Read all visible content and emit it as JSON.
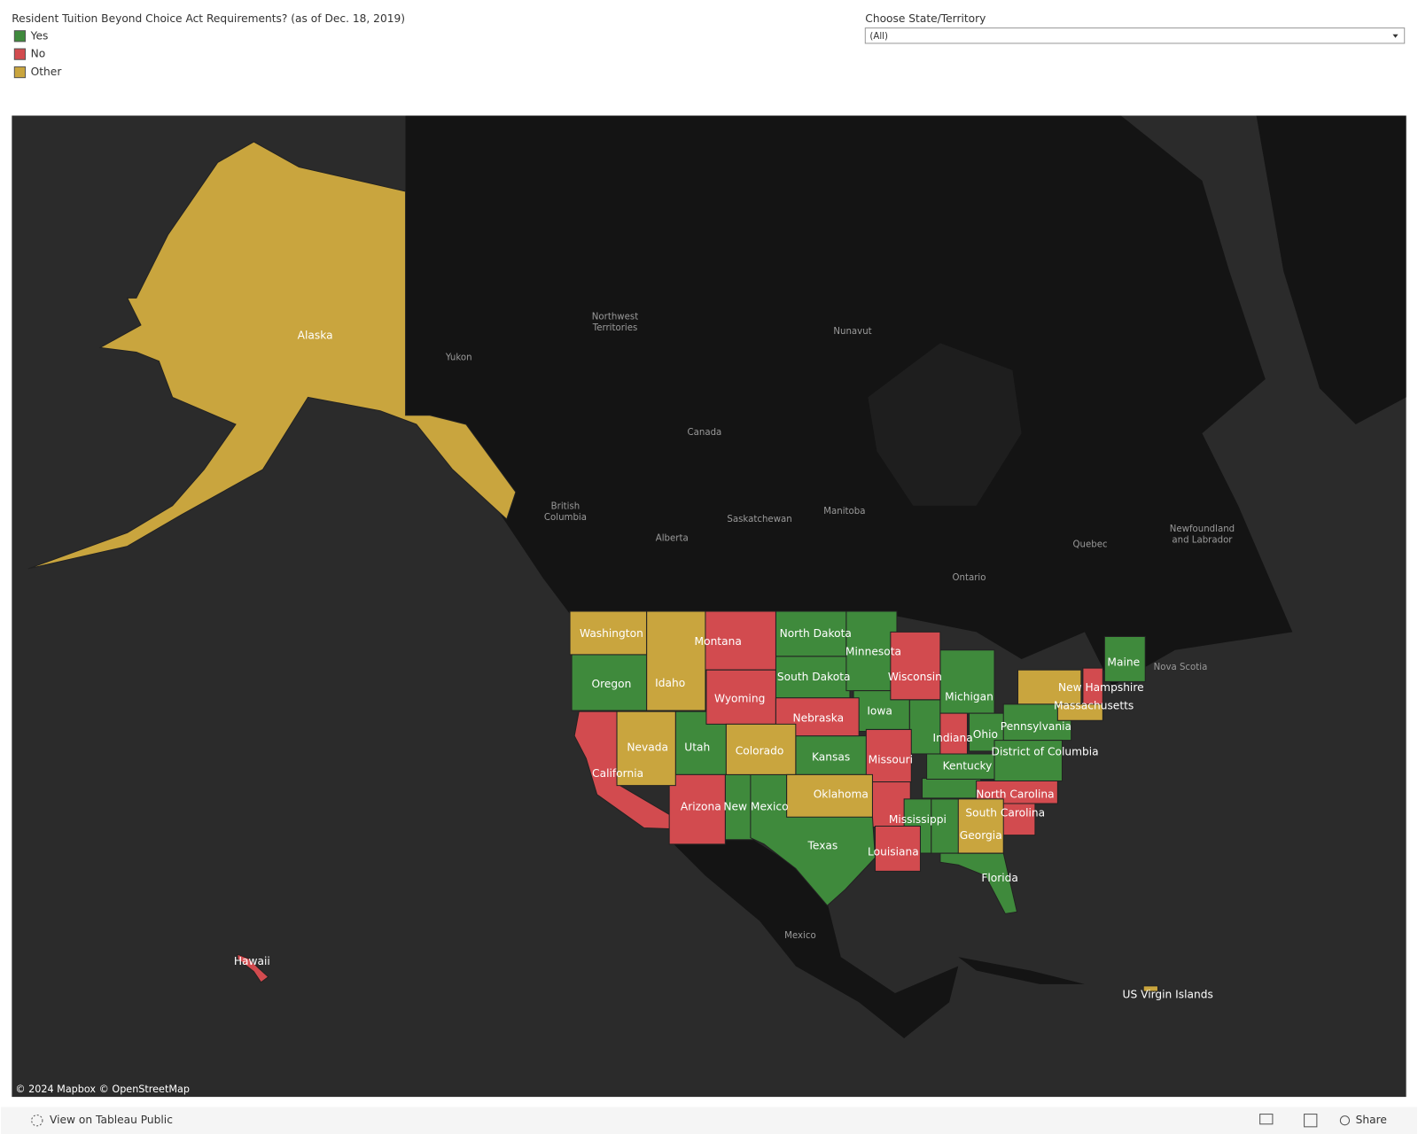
{
  "legend": {
    "title": "Resident Tuition Beyond Choice Act Requirements? (as of Dec. 18, 2019)",
    "items": [
      {
        "label": "Yes",
        "color": "#3f8a3c",
        "states": [
          "Oregon",
          "Utah",
          "New Mexico",
          "Texas",
          "North Dakota",
          "South Dakota",
          "Minnesota",
          "Iowa",
          "Kansas",
          "Michigan",
          "Ohio",
          "Pennsylvania",
          "Kentucky",
          "Mississippi",
          "Florida",
          "Maine",
          "District of Columbia"
        ]
      },
      {
        "label": "No",
        "color": "#d24b4f",
        "states": [
          "Montana",
          "Wyoming",
          "Nebraska",
          "Wisconsin",
          "Missouri",
          "Indiana",
          "California",
          "Arizona",
          "Louisiana",
          "North Carolina",
          "South Carolina",
          "New Hampshire",
          "Hawaii"
        ]
      },
      {
        "label": "Other",
        "color": "#c9a53e",
        "states": [
          "Alaska",
          "Washington",
          "Idaho",
          "Nevada",
          "Colorado",
          "Oklahoma",
          "Georgia",
          "Massachusetts",
          "US Virgin Islands"
        ]
      }
    ]
  },
  "filter": {
    "label": "Choose State/Territory",
    "value": "(All)"
  },
  "map": {
    "places": [
      [
        "Northwest",
        "Territories"
      ],
      [
        "Yukon"
      ],
      [
        "Nunavut"
      ],
      [
        "Canada"
      ],
      [
        "British",
        "Columbia"
      ],
      [
        "Alberta"
      ],
      [
        "Saskatchewan"
      ],
      [
        "Manitoba"
      ],
      [
        "Ontario"
      ],
      [
        "Quebec"
      ],
      [
        "Newfoundland",
        "and Labrador"
      ],
      [
        "Nova Scotia"
      ],
      [
        "Mexico"
      ]
    ],
    "attribution": "© 2024 Mapbox © OpenStreetMap"
  },
  "footer": {
    "link": "View on Tableau Public",
    "share": "Share"
  }
}
